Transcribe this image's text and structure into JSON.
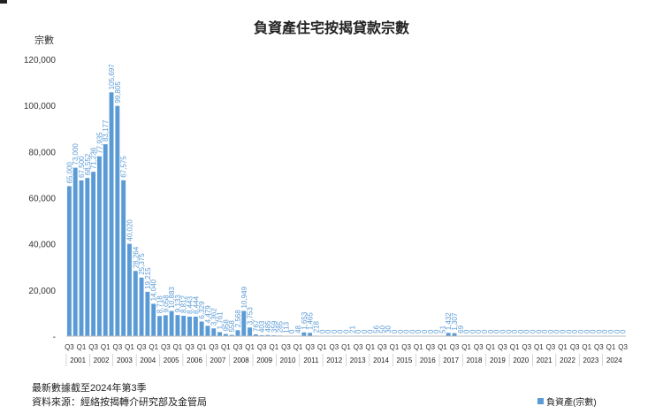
{
  "chart_data": {
    "type": "bar",
    "title": "負資產住宅按揭貸款宗數",
    "ylabel": "宗數",
    "ylim": [
      0,
      120000
    ],
    "yticks": [
      "-",
      "20,000",
      "40,000",
      "60,000",
      "80,000",
      "100,000",
      "120,000"
    ],
    "bar_color": "#5b9bd5",
    "quarter_labels": [
      "Q3",
      "Q1",
      "Q3",
      "Q1",
      "Q3",
      "Q1",
      "Q3",
      "Q1",
      "Q3",
      "Q1",
      "Q3",
      "Q1",
      "Q3",
      "Q1",
      "Q3",
      "Q1",
      "Q3",
      "Q1",
      "Q3",
      "Q1",
      "Q3",
      "Q1",
      "Q3",
      "Q1",
      "Q3",
      "Q1",
      "Q3",
      "Q1",
      "Q3",
      "Q1",
      "Q3",
      "Q1",
      "Q3",
      "Q1",
      "Q3",
      "Q1",
      "Q3",
      "Q1",
      "Q3",
      "Q1",
      "Q3",
      "Q1",
      "Q3",
      "Q1",
      "Q3",
      "Q1",
      "Q3",
      "Q1",
      "Q3"
    ],
    "years": [
      "2001",
      "2002",
      "2003",
      "2004",
      "2005",
      "2006",
      "2007",
      "2008",
      "2009",
      "2010",
      "2011",
      "2012",
      "2013",
      "2014",
      "2015",
      "2016",
      "2017",
      "2018",
      "2019",
      "2020",
      "2021",
      "2022",
      "2023",
      "2024"
    ],
    "values": [
      65000,
      73000,
      67500,
      68552,
      71236,
      77935,
      83177,
      105697,
      99805,
      67575,
      40020,
      28264,
      25375,
      19215,
      14040,
      8718,
      9058,
      10883,
      9133,
      8812,
      8443,
      8444,
      6329,
      4479,
      3362,
      1761,
      958,
      558,
      2568,
      10949,
      3753,
      767,
      403,
      485,
      359,
      285,
      113,
      0,
      48,
      1653,
      1465,
      218,
      0,
      0,
      0,
      0,
      0,
      21,
      0,
      0,
      0,
      56,
      50,
      30,
      0,
      0,
      0,
      0,
      0,
      0,
      0,
      0,
      51,
      1432,
      1307,
      69,
      0,
      0,
      0,
      0,
      0,
      0,
      0,
      0,
      0,
      0,
      0,
      0,
      0,
      0,
      0,
      0,
      0,
      0,
      0,
      0,
      0,
      0,
      0,
      0,
      0,
      0,
      0,
      0,
      0,
      0,
      0,
      0,
      0,
      0,
      0,
      0,
      0,
      0,
      0,
      0,
      0,
      0,
      0,
      0,
      0,
      0,
      0,
      0,
      0,
      0,
      0,
      0,
      0,
      0,
      0,
      0,
      0,
      0,
      0,
      0,
      0,
      0,
      0,
      0,
      0,
      0
    ],
    "data_labels": [
      "65,000",
      "73,000",
      "67,500",
      "68,552",
      "71,236",
      "77,935",
      "83,177",
      "105,697",
      "99,805",
      "67,575",
      "40,020",
      "28,264",
      "25,375",
      "19,215",
      "14,040",
      "8,718",
      "9,058",
      "10,883",
      "9,133",
      "8,812",
      "8,443",
      "8,444",
      "6,329",
      "4,479",
      "3,362",
      "1,761",
      "958",
      "558",
      "2,568",
      "10,949",
      "3,753",
      "767",
      "403",
      "485",
      "359",
      "285",
      "113",
      "0",
      "48",
      "1,653",
      "1,465",
      "218",
      "0",
      "0",
      "0",
      "0",
      "0",
      "21",
      "0",
      "0",
      "0",
      "56",
      "50",
      "30",
      "0",
      "0",
      "0",
      "0",
      "0",
      "0",
      "0",
      "0",
      "51",
      "1,432",
      "1,307",
      "69",
      "0",
      "0",
      "0",
      "0",
      "0",
      "0",
      "0",
      "0",
      "0",
      "0",
      "0",
      "0",
      "0",
      "0",
      "0",
      "0",
      "0",
      "0",
      "0",
      "0",
      "0",
      "0",
      "0",
      "0",
      "0",
      "0",
      "0",
      "0",
      "0",
      "0",
      "0",
      "0",
      "0",
      "0",
      "0",
      "0",
      "0",
      "0",
      "0",
      "0",
      "0",
      "0",
      "0",
      "0",
      "0",
      "0",
      "0",
      "0",
      "0",
      "0",
      "0",
      "0",
      "0",
      "0",
      "0",
      "0",
      "0",
      "0",
      "0",
      "0",
      "0",
      "0",
      "0",
      "0",
      "0",
      "0"
    ],
    "legend": [
      {
        "name": "負資產(宗數)",
        "color": "#5b9bd5"
      }
    ],
    "grid": false
  },
  "footnote": "最新數據截至2024年第3季",
  "source": "資料來源：經絡按揭轉介研究部及金管局",
  "legend_label": "負資產(宗數)"
}
